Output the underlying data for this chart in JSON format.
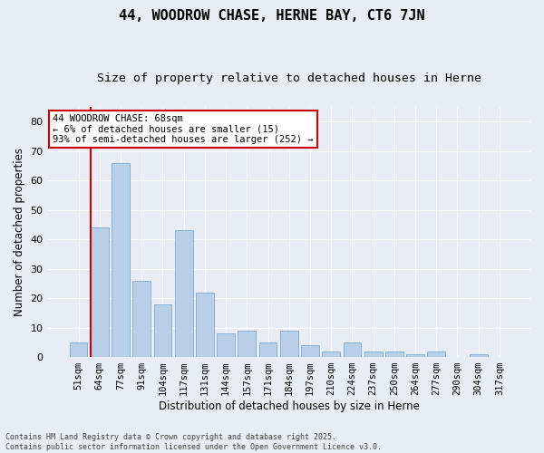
{
  "title": "44, WOODROW CHASE, HERNE BAY, CT6 7JN",
  "subtitle": "Size of property relative to detached houses in Herne",
  "xlabel": "Distribution of detached houses by size in Herne",
  "ylabel": "Number of detached properties",
  "bar_labels": [
    "51sqm",
    "64sqm",
    "77sqm",
    "91sqm",
    "104sqm",
    "117sqm",
    "131sqm",
    "144sqm",
    "157sqm",
    "171sqm",
    "184sqm",
    "197sqm",
    "210sqm",
    "224sqm",
    "237sqm",
    "250sqm",
    "264sqm",
    "277sqm",
    "290sqm",
    "304sqm",
    "317sqm"
  ],
  "bar_values": [
    5,
    44,
    66,
    26,
    18,
    43,
    22,
    8,
    9,
    5,
    9,
    4,
    2,
    5,
    2,
    2,
    1,
    2,
    0,
    1,
    0
  ],
  "bar_color": "#b8cfe8",
  "bar_edge_color": "#7aaad0",
  "background_color": "#e8edf5",
  "grid_color": "#ffffff",
  "vline_color": "#cc0000",
  "vline_x_index": 1,
  "annotation_text": "44 WOODROW CHASE: 68sqm\n← 6% of detached houses are smaller (15)\n93% of semi-detached houses are larger (252) →",
  "annotation_box_facecolor": "#ffffff",
  "annotation_box_edgecolor": "#cc0000",
  "ylim": [
    0,
    85
  ],
  "yticks": [
    0,
    10,
    20,
    30,
    40,
    50,
    60,
    70,
    80
  ],
  "footer": "Contains HM Land Registry data © Crown copyright and database right 2025.\nContains public sector information licensed under the Open Government Licence v3.0."
}
